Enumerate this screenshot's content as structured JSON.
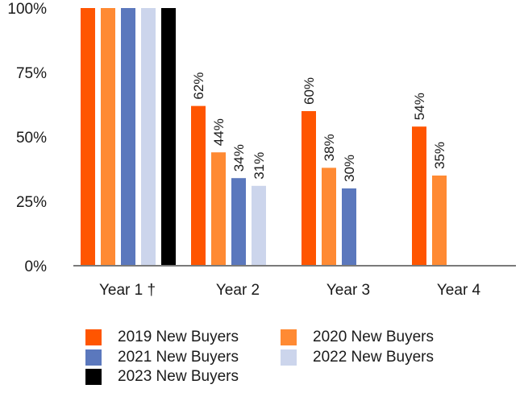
{
  "chart_data": {
    "type": "bar",
    "categories": [
      "Year 1 †",
      "Year 2",
      "Year 3",
      "Year 4"
    ],
    "series": [
      {
        "name": "2019 New Buyers",
        "color": "#ff5500",
        "values": [
          100,
          62,
          60,
          54
        ],
        "labels": [
          "",
          "62%",
          "60%",
          "54%"
        ]
      },
      {
        "name": "2020 New Buyers",
        "color": "#ff8a33",
        "values": [
          100,
          44,
          38,
          35
        ],
        "labels": [
          "",
          "44%",
          "38%",
          "35%"
        ]
      },
      {
        "name": "2021 New Buyers",
        "color": "#5b78bd",
        "values": [
          100,
          34,
          30,
          null
        ],
        "labels": [
          "",
          "34%",
          "30%",
          ""
        ]
      },
      {
        "name": "2022 New Buyers",
        "color": "#ccd5ec",
        "values": [
          100,
          31,
          null,
          null
        ],
        "labels": [
          "",
          "31%",
          "",
          ""
        ]
      },
      {
        "name": "2023 New Buyers",
        "color": "#000000",
        "values": [
          100,
          null,
          null,
          null
        ],
        "labels": [
          "",
          "",
          "",
          ""
        ]
      }
    ],
    "yticks": [
      "0%",
      "25%",
      "50%",
      "75%",
      "100%"
    ],
    "ylim": [
      0,
      100
    ],
    "title": "",
    "xlabel": "",
    "ylabel": "",
    "legend_position": "bottom"
  }
}
